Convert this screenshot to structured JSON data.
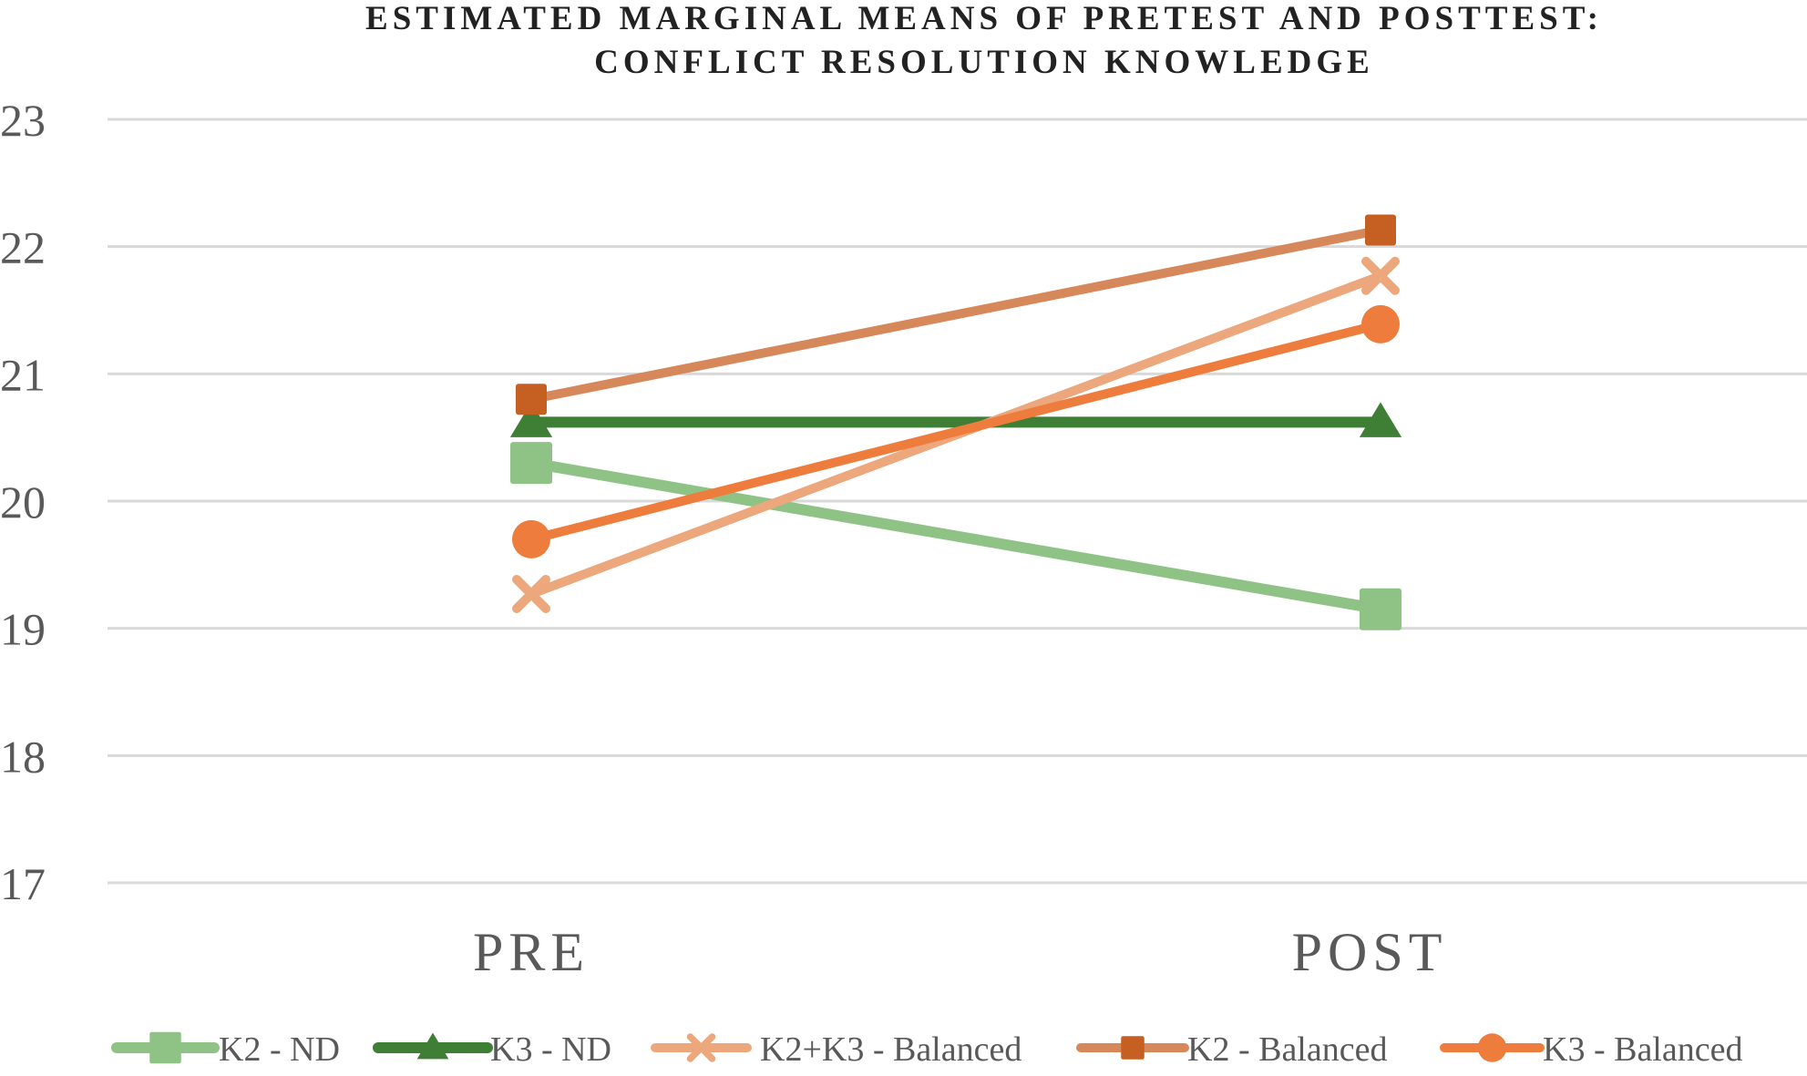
{
  "chart_data": {
    "type": "line",
    "title_lines": [
      "ESTIMATED MARGINAL MEANS OF PRETEST AND POSTTEST:",
      "CONFLICT RESOLUTION KNOWLEDGE"
    ],
    "categories": [
      "PRE",
      "POST"
    ],
    "ylim": [
      17,
      23
    ],
    "yticks": [
      "17",
      "18",
      "19",
      "20",
      "21",
      "22",
      "23"
    ],
    "grid": true,
    "legend_position": "bottom",
    "series": [
      {
        "name": "K2 - ND",
        "values": [
          20.3,
          19.15
        ],
        "color": "#8fc386",
        "marker": "square",
        "line_width": 12
      },
      {
        "name": "K3 - ND",
        "values": [
          20.62,
          20.62
        ],
        "color": "#3f7e35",
        "marker": "triangle",
        "line_width": 12
      },
      {
        "name": "K2+K3 - Balanced",
        "values": [
          19.27,
          21.77
        ],
        "color": "#eda77d",
        "marker": "x",
        "line_width": 10
      },
      {
        "name": "K2 - Balanced",
        "values": [
          20.8,
          22.13
        ],
        "color": "#d6885a",
        "marker": "square-dark",
        "marker_color": "#c55f22",
        "line_width": 10
      },
      {
        "name": "K3 - Balanced",
        "values": [
          19.7,
          21.39
        ],
        "color": "#ee7c3c",
        "marker": "circle",
        "line_width": 10
      }
    ]
  }
}
